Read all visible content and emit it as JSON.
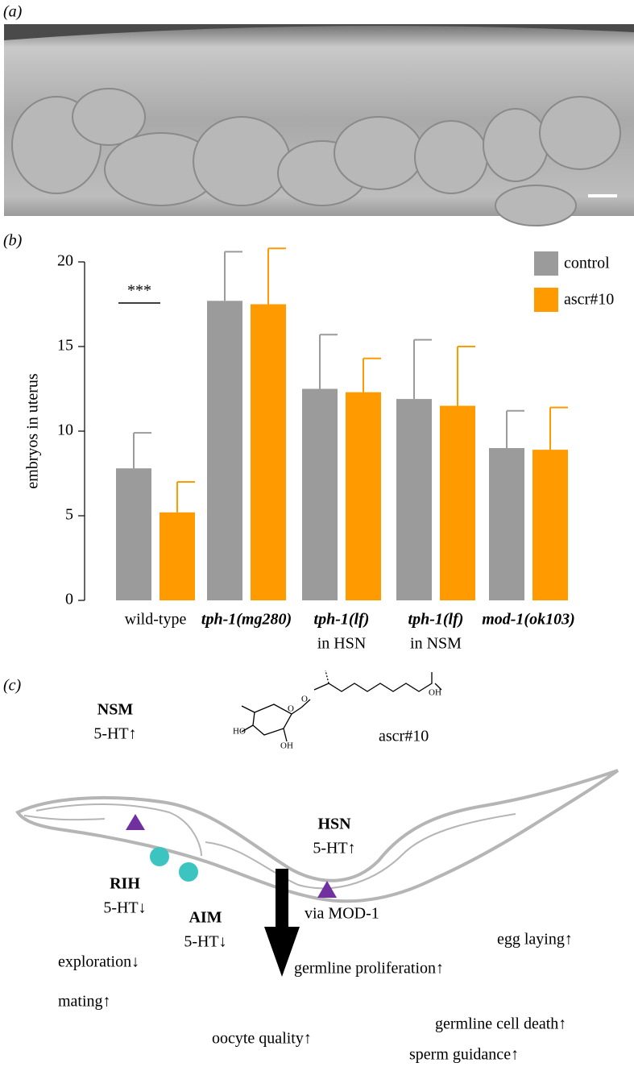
{
  "panel_a": {
    "label": "(a)"
  },
  "chart_data": {
    "type": "bar",
    "panel_label": "(b)",
    "ylabel": "embryos in uterus",
    "categories": [
      "wild-type",
      "tph-1(mg280)",
      "tph-1(lf)",
      "tph-1(lf)",
      "mod-1(ok103)"
    ],
    "category_notes": [
      null,
      null,
      "in HSN",
      "in NSM",
      null
    ],
    "series": [
      {
        "name": "control",
        "color": "#9b9b9b",
        "values": [
          7.8,
          17.7,
          12.5,
          11.9,
          9.0
        ],
        "errors": [
          2.1,
          2.9,
          3.2,
          3.5,
          2.2
        ]
      },
      {
        "name": "ascr#10",
        "color": "#ff9a00",
        "values": [
          5.2,
          17.5,
          12.3,
          11.5,
          8.9
        ],
        "errors": [
          1.8,
          3.3,
          2.0,
          3.5,
          2.5
        ]
      }
    ],
    "ylim": [
      0,
      20
    ],
    "yticks": [
      0,
      5,
      10,
      15,
      20
    ],
    "legend": "top-right",
    "annotations": [
      {
        "text": "***",
        "category": 0
      }
    ]
  },
  "panel_c": {
    "label": "(c)",
    "molecule": {
      "name": "ascr#10",
      "color": "#ff9a00",
      "atoms": [
        "OH",
        "O",
        "O",
        "HO",
        "OH"
      ]
    },
    "neurons": [
      {
        "name": "NSM",
        "change": "5-HT↑",
        "color": "#7030a0"
      },
      {
        "name": "HSN",
        "change": "5-HT↑",
        "color": "#7030a0"
      },
      {
        "name": "RIH",
        "change": "5-HT↓",
        "color": "#3cc5c0"
      },
      {
        "name": "AIM",
        "change": "5-HT↓",
        "color": "#3cc5c0"
      }
    ],
    "arrow_label": "via MOD-1",
    "effects": [
      {
        "text": "egg laying↑",
        "color": "#2b4a9c"
      },
      {
        "text": "exploration↓",
        "color": "#2b4a9c"
      },
      {
        "text": "germline proliferation↑",
        "color": "#b5284c"
      },
      {
        "text": "mating↑",
        "color": "#2b4a9c"
      },
      {
        "text": "germline cell death↑",
        "color": "#b5284c"
      },
      {
        "text": "oocyte quality↑",
        "color": "#b5284c"
      },
      {
        "text": "sperm guidance↑",
        "color": "#b5284c"
      }
    ]
  }
}
